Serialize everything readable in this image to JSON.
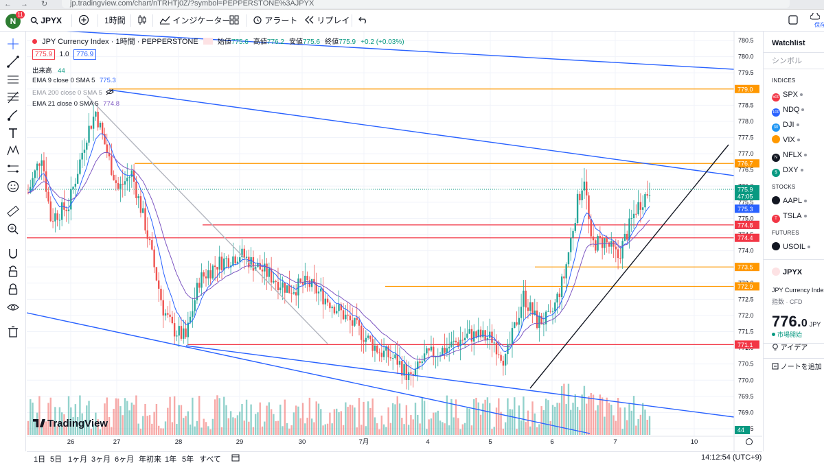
{
  "browser": {
    "url": "jp.tradingview.com/chart/nTRHTj0Z/?symbol=PEPPERSTONE%3AJPYX",
    "back": "←",
    "forward": "→",
    "reload": "↻"
  },
  "toolbar": {
    "avatar_letter": "N",
    "avatar_badge": "11",
    "symbol": "JPYX",
    "interval": "1時間",
    "indicators_label": "インジケーター",
    "alert_label": "アラート",
    "replay_label": "リプレイ",
    "save_label": "保存"
  },
  "legend": {
    "title": "JPY Currency Index · 1時間 · PEPPERSTONE",
    "ohlc_open_label": "始値",
    "ohlc_open": "775.6",
    "ohlc_high_label": "高値",
    "ohlc_high": "776.2",
    "ohlc_low_label": "安値",
    "ohlc_low": "775.6",
    "ohlc_close_label": "終値",
    "ohlc_close": "775.9",
    "change": "+0.2 (+0.03%)",
    "bid": "775.9",
    "spread": "1.0",
    "ask": "776.9",
    "volume_label": "出来高",
    "volume_value": "44",
    "ema9_label": "EMA 9 close 0 SMA 5",
    "ema9_value": "775.3",
    "ema200_label": "EMA 200 close 0 SMA 5",
    "ema21_label": "EMA 21 close 0 SMA 5",
    "ema21_value": "774.8"
  },
  "price_axis": {
    "ticks": [
      "780.5",
      "780.0",
      "779.5",
      "779.0",
      "778.5",
      "778.0",
      "777.5",
      "777.0",
      "776.5",
      "776.0",
      "775.5",
      "775.0",
      "774.5",
      "774.0",
      "773.5",
      "773.0",
      "772.5",
      "772.0",
      "771.5",
      "771.0",
      "770.5",
      "770.0",
      "769.5",
      "769.0",
      "768.5"
    ],
    "labels": [
      {
        "text": "779.0",
        "color": "#ff9800"
      },
      {
        "text": "776.7",
        "color": "#ff9800"
      },
      {
        "text": "775.9",
        "sub": "47:05",
        "color": "#089981"
      },
      {
        "text": "775.3",
        "color": "#2962ff"
      },
      {
        "text": "774.8",
        "color": "#7e57c2"
      },
      {
        "text": "774.8",
        "color": "#f23645"
      },
      {
        "text": "774.4",
        "color": "#f23645"
      },
      {
        "text": "773.5",
        "color": "#ff9800"
      },
      {
        "text": "772.9",
        "color": "#ff9800"
      },
      {
        "text": "771.1",
        "color": "#f23645"
      }
    ],
    "volume_label": "44"
  },
  "time_axis": {
    "ticks": [
      "26",
      "27",
      "28",
      "29",
      "30",
      "7月",
      "4",
      "5",
      "6",
      "7",
      "10"
    ]
  },
  "logo_text": "TradingView",
  "watchlist": {
    "title": "Watchlist",
    "search_placeholder": "シンボル",
    "sections": [
      {
        "name": "INDICES",
        "items": [
          {
            "symbol": "SPX",
            "logo": "500",
            "color": "#f23645"
          },
          {
            "symbol": "NDQ",
            "logo": "100",
            "color": "#2962ff"
          },
          {
            "symbol": "DJI",
            "logo": "30",
            "color": "#2196f3"
          },
          {
            "symbol": "VIX",
            "logo": "",
            "color": "#ff9800"
          },
          {
            "symbol": "NFLX",
            "logo": "N",
            "color": "#131722"
          },
          {
            "symbol": "DXY",
            "logo": "$",
            "color": "#089981"
          }
        ]
      },
      {
        "name": "STOCKS",
        "items": [
          {
            "symbol": "AAPL",
            "logo": "",
            "color": "#131722"
          },
          {
            "symbol": "TSLA",
            "logo": "T",
            "color": "#f23645"
          }
        ]
      },
      {
        "name": "FUTURES",
        "items": [
          {
            "symbol": "USOIL",
            "logo": "",
            "color": "#131722"
          }
        ]
      }
    ],
    "detail": {
      "symbol": "JPYX",
      "name": "JPY Currency Index",
      "sub": "指数 · CFD",
      "price_main": "776.",
      "price_last": "0",
      "currency": "JPY",
      "status": "市場開始",
      "ideas_label": "アイデア",
      "notes_label": "ノートを追加"
    }
  },
  "bottom_bar": {
    "ranges": [
      "1日",
      "5日",
      "1ヶ月",
      "3ヶ月",
      "6ヶ月",
      "年初来",
      "1年",
      "5年",
      "すべて"
    ],
    "clock": "14:12:54 (UTC+9)"
  },
  "colors": {
    "up": "#26a69a",
    "down": "#ef5350",
    "blue": "#2962ff",
    "orange": "#ff9800",
    "red": "#f23645"
  }
}
